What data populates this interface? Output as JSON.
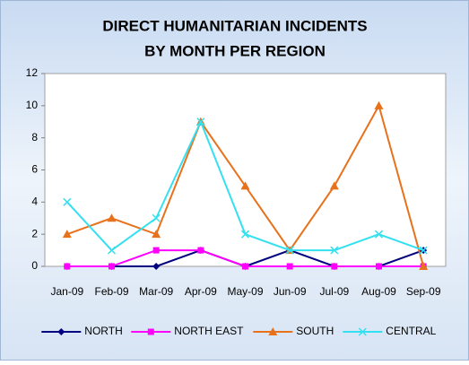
{
  "chart_data": {
    "type": "line",
    "title": [
      "DIRECT HUMANITARIAN INCIDENTS",
      "BY MONTH PER REGION"
    ],
    "categories": [
      "Jan-09",
      "Feb-09",
      "Mar-09",
      "Apr-09",
      "May-09",
      "Jun-09",
      "Jul-09",
      "Aug-09",
      "Sep-09"
    ],
    "series": [
      {
        "name": "NORTH",
        "color": "#000080",
        "marker": "diamond",
        "values": [
          0,
          0,
          0,
          1,
          0,
          1,
          0,
          0,
          1
        ]
      },
      {
        "name": "NORTH EAST",
        "color": "#ff00ff",
        "marker": "square",
        "values": [
          0,
          0,
          1,
          1,
          0,
          0,
          0,
          0,
          0
        ]
      },
      {
        "name": "SOUTH",
        "color": "#e8711c",
        "marker": "triangle",
        "values": [
          2,
          3,
          2,
          9,
          5,
          1,
          5,
          10,
          0
        ]
      },
      {
        "name": "CENTRAL",
        "color": "#33e0f0",
        "marker": "x",
        "values": [
          4,
          1,
          3,
          9,
          2,
          1,
          1,
          2,
          1
        ]
      }
    ],
    "ylim": [
      0,
      12
    ],
    "yticks": [
      0,
      2,
      4,
      6,
      8,
      10,
      12
    ],
    "legend": "bottom"
  }
}
